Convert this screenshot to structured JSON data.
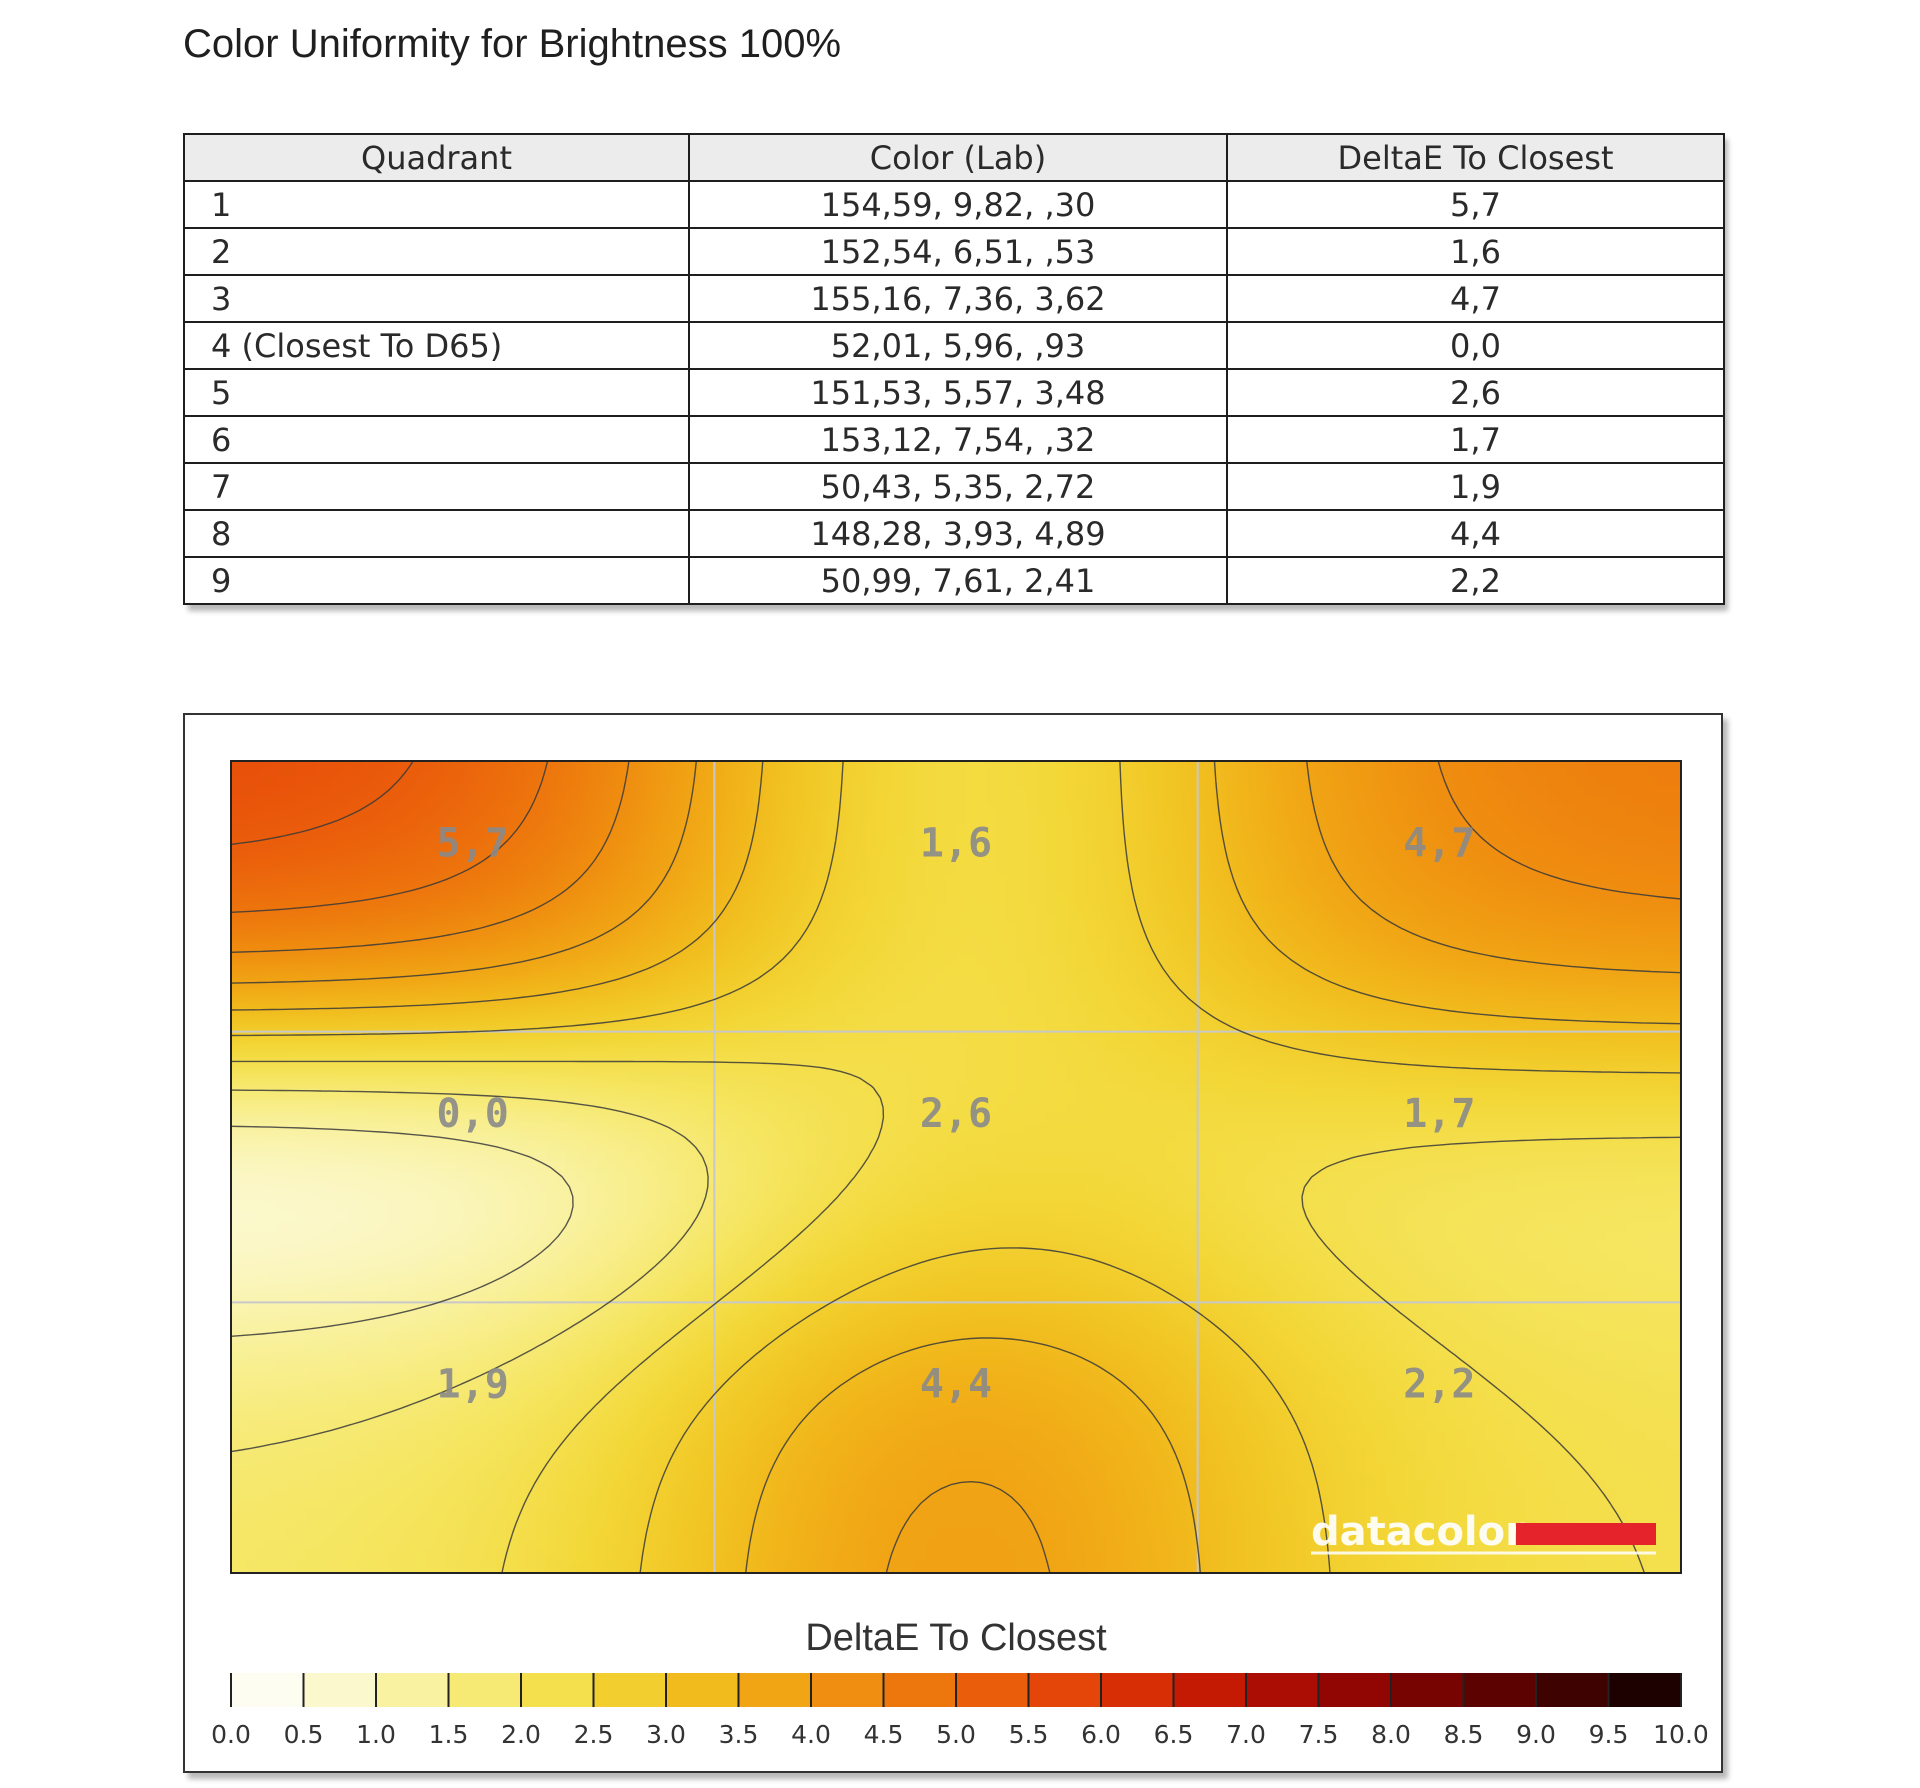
{
  "page_title": "Color Uniformity for Brightness 100%",
  "table": {
    "headers": [
      "Quadrant",
      "Color (Lab)",
      "DeltaE To Closest"
    ],
    "rows": [
      {
        "quadrant": "1",
        "lab": "154,59,   9,82,     ,30",
        "delta": "5,7"
      },
      {
        "quadrant": "2",
        "lab": "152,54,   6,51,     ,53",
        "delta": "1,6"
      },
      {
        "quadrant": "3",
        "lab": "155,16,   7,36,   3,62",
        "delta": "4,7"
      },
      {
        "quadrant": "4 (Closest To D65)",
        "lab": "52,01,   5,96,     ,93",
        "delta": "0,0"
      },
      {
        "quadrant": "5",
        "lab": "151,53,   5,57,   3,48",
        "delta": "2,6"
      },
      {
        "quadrant": "6",
        "lab": "153,12,   7,54,     ,32",
        "delta": "1,7"
      },
      {
        "quadrant": "7",
        "lab": "50,43,   5,35,   2,72",
        "delta": "1,9"
      },
      {
        "quadrant": "8",
        "lab": "148,28,   3,93,   4,89",
        "delta": "4,4"
      },
      {
        "quadrant": "9",
        "lab": "50,99,   7,61,   2,41",
        "delta": "2,2"
      }
    ]
  },
  "chart_data": {
    "type": "heatmap",
    "grid": {
      "rows": 3,
      "cols": 3
    },
    "values": [
      [
        5.7,
        1.6,
        4.7
      ],
      [
        0.0,
        2.6,
        1.7
      ],
      [
        1.9,
        4.4,
        2.2
      ]
    ],
    "cell_labels": [
      [
        "5,7",
        "1,6",
        "4,7"
      ],
      [
        "0,0",
        "2,6",
        "1,7"
      ],
      [
        "1,9",
        "4,4",
        "2,2"
      ]
    ],
    "color_scale": {
      "title": "DeltaE To Closest",
      "range": [
        0,
        10
      ],
      "ticks": [
        0,
        0.5,
        1,
        1.5,
        2,
        2.5,
        3,
        3.5,
        4,
        4.5,
        5,
        5.5,
        6,
        6.5,
        7,
        7.5,
        8,
        8.5,
        9,
        9.5,
        10
      ],
      "tick_labels": [
        "0.0",
        "0.5",
        "1.0",
        "1.5",
        "2.0",
        "2.5",
        "3.0",
        "3.5",
        "4.0",
        "4.5",
        "5.0",
        "5.5",
        "6.0",
        "6.5",
        "7.0",
        "7.5",
        "8.0",
        "8.5",
        "9.0",
        "9.5",
        "10.0"
      ],
      "stops": [
        "#ffffff",
        "#fdfbe3",
        "#faf5b6",
        "#f8ee8a",
        "#f5e55e",
        "#f3d839",
        "#f1c624",
        "#f1b018",
        "#f09a12",
        "#ee820e",
        "#ec6a0c",
        "#e8500a",
        "#e03a07",
        "#cf2205",
        "#b81103",
        "#9e0702",
        "#840401",
        "#6a0301",
        "#4e0200",
        "#2e0100",
        "#0c0000"
      ]
    },
    "watermark": "datacolor",
    "accent_color": "#e4242a",
    "grid_lines": true
  }
}
